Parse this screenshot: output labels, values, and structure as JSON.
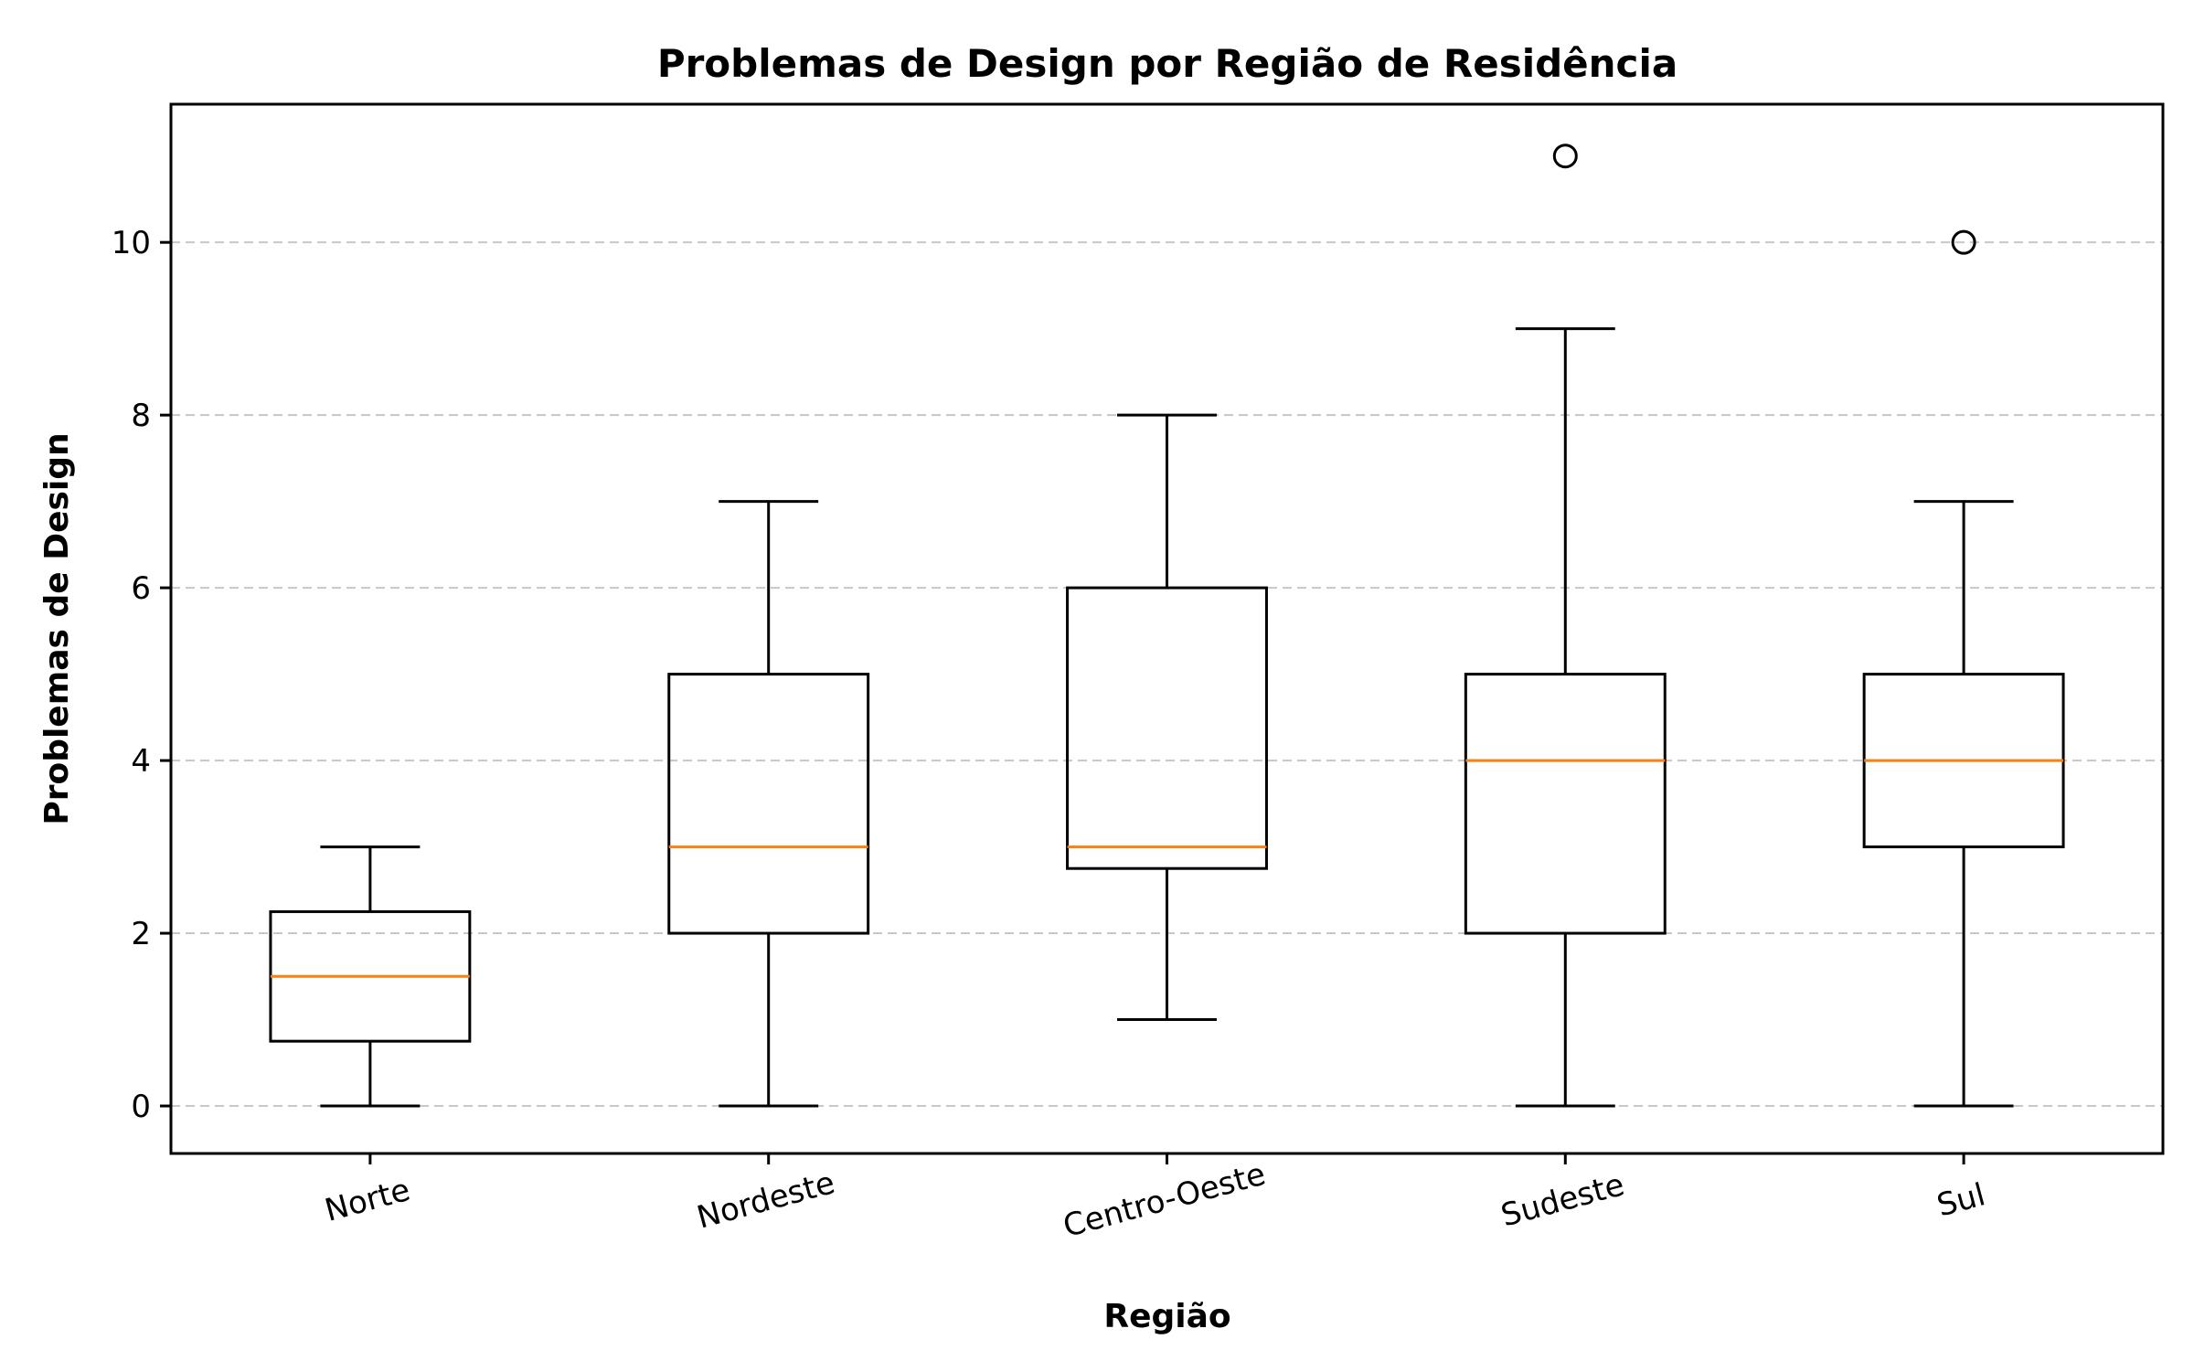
{
  "chart_data": {
    "type": "boxplot",
    "title": "Problemas de Design por Região de Residência",
    "xlabel": "Região",
    "ylabel": "Problemas de Design",
    "ylim": [
      -0.55,
      11.6
    ],
    "yticks": [
      0,
      2,
      4,
      6,
      8,
      10
    ],
    "grid": "y-dashed",
    "categories": [
      "Norte",
      "Nordeste",
      "Centro-Oeste",
      "Sudeste",
      "Sul"
    ],
    "boxes": [
      {
        "whisker_low": 0,
        "q1": 0.75,
        "median": 1.5,
        "q3": 2.25,
        "whisker_high": 3,
        "outliers": []
      },
      {
        "whisker_low": 0,
        "q1": 2,
        "median": 3,
        "q3": 5,
        "whisker_high": 7,
        "outliers": []
      },
      {
        "whisker_low": 1,
        "q1": 2.75,
        "median": 3,
        "q3": 6,
        "whisker_high": 8,
        "outliers": []
      },
      {
        "whisker_low": 0,
        "q1": 2,
        "median": 4,
        "q3": 5,
        "whisker_high": 9,
        "outliers": [
          11
        ]
      },
      {
        "whisker_low": 0,
        "q1": 3,
        "median": 4,
        "q3": 5,
        "whisker_high": 7,
        "outliers": [
          10
        ]
      }
    ],
    "colors": {
      "box": "#000000",
      "median": "#ff7f0e",
      "grid": "#c8c8c8"
    }
  }
}
